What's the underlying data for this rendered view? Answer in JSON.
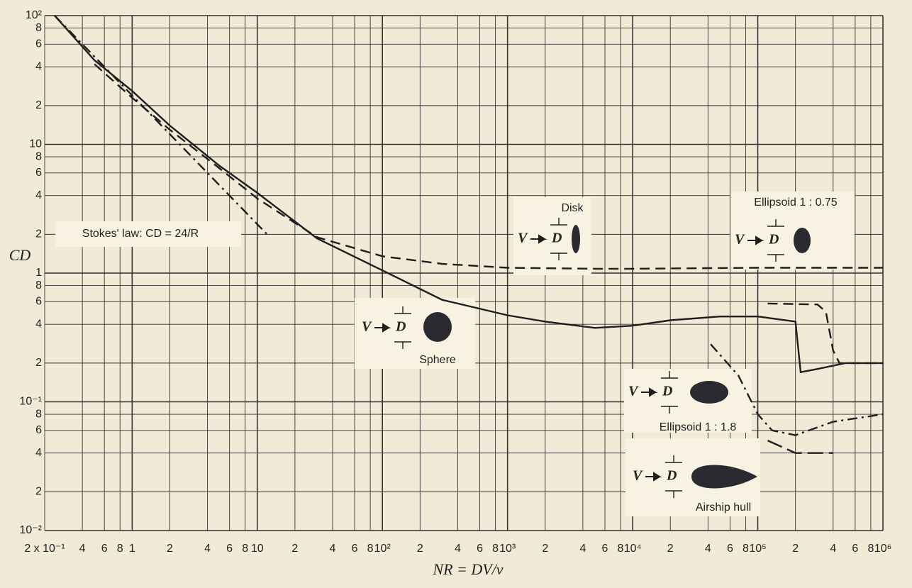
{
  "chart_data": {
    "type": "line",
    "x_label": "NR = DV/ν",
    "y_label": "CD",
    "log_x": true,
    "log_y": true,
    "grid": true,
    "xlim": [
      0.2,
      1000000
    ],
    "ylim": [
      0.01,
      100
    ],
    "xticks": [
      {
        "value": 0.2,
        "label": "2 x 10⁻¹"
      },
      {
        "value": 0.4,
        "label": "4"
      },
      {
        "value": 0.6,
        "label": "6"
      },
      {
        "value": 0.8,
        "label": "8"
      },
      1,
      2,
      4,
      6,
      8,
      10,
      {
        "value": 20,
        "label": "2"
      },
      {
        "value": 40,
        "label": "4"
      },
      {
        "value": 60,
        "label": "6"
      },
      {
        "value": 80,
        "label": "8"
      },
      {
        "value": 100,
        "label": "10²"
      },
      {
        "value": 200,
        "label": "2"
      },
      {
        "value": 400,
        "label": "4"
      },
      {
        "value": 600,
        "label": "6"
      },
      {
        "value": 800,
        "label": "8"
      },
      {
        "value": 1000,
        "label": "10³"
      },
      {
        "value": 2000,
        "label": "2"
      },
      {
        "value": 4000,
        "label": "4"
      },
      {
        "value": 6000,
        "label": "6"
      },
      {
        "value": 8000,
        "label": "8"
      },
      {
        "value": 10000,
        "label": "10⁴"
      },
      {
        "value": 20000,
        "label": "2"
      },
      {
        "value": 40000,
        "label": "4"
      },
      {
        "value": 60000,
        "label": "6"
      },
      {
        "value": 80000,
        "label": "8"
      },
      {
        "value": 100000,
        "label": "10⁵"
      },
      {
        "value": 200000,
        "label": "2"
      },
      {
        "value": 400000,
        "label": "4"
      },
      {
        "value": 600000,
        "label": "6"
      },
      {
        "value": 800000,
        "label": "8"
      },
      {
        "value": 1000000,
        "label": "10⁶"
      }
    ],
    "yticks": [
      {
        "value": 0.01,
        "label": "10⁻²"
      },
      {
        "value": 0.02,
        "label": "2"
      },
      {
        "value": 0.04,
        "label": "4"
      },
      {
        "value": 0.06,
        "label": "6"
      },
      {
        "value": 0.08,
        "label": "8"
      },
      {
        "value": 0.1,
        "label": "10⁻¹"
      },
      {
        "value": 0.2,
        "label": "2"
      },
      {
        "value": 0.4,
        "label": "4"
      },
      {
        "value": 0.6,
        "label": "6"
      },
      {
        "value": 0.8,
        "label": "8"
      },
      1,
      2,
      4,
      6,
      8,
      10,
      {
        "value": 20,
        "label": "2"
      },
      {
        "value": 40,
        "label": "4"
      },
      {
        "value": 60,
        "label": "6"
      },
      {
        "value": 80,
        "label": "8"
      },
      {
        "value": 100,
        "label": "10²"
      }
    ],
    "icon_labels": {
      "velocity": "V",
      "diameter": "D"
    },
    "series": [
      {
        "name": "Sphere",
        "color": "#1e1e1e",
        "dash": "solid",
        "x": [
          0.24,
          0.5,
          1,
          2,
          5,
          10,
          30,
          100,
          300,
          1000,
          2000,
          5000,
          10000,
          20000,
          50000,
          100000,
          200000,
          220000,
          300000,
          500000,
          1000000
        ],
        "y": [
          100,
          45,
          26,
          14,
          6.8,
          4.2,
          1.86,
          1.05,
          0.62,
          0.47,
          0.42,
          0.375,
          0.39,
          0.43,
          0.46,
          0.46,
          0.42,
          0.17,
          0.18,
          0.2,
          0.2
        ]
      },
      {
        "name": "Disk",
        "color": "#1e1e1e",
        "dash": "dashed",
        "x": [
          0.5,
          1,
          2,
          5,
          10,
          30,
          100,
          300,
          1000,
          5000,
          10000,
          100000,
          1000000
        ],
        "y": [
          42,
          23,
          13,
          6.5,
          3.8,
          1.9,
          1.35,
          1.18,
          1.1,
          1.08,
          1.08,
          1.1,
          1.1
        ]
      },
      {
        "name": "Stokes' law: CD = 24/R",
        "color": "#1e1e1e",
        "dash": "dashdot",
        "x": [
          0.24,
          12
        ],
        "y": [
          100,
          2
        ]
      },
      {
        "name": "Ellipsoid 1 : 0.75",
        "color": "#1e1e1e",
        "dash": "dashed",
        "x": [
          120000,
          300000,
          350000,
          400000,
          450000,
          1000000
        ],
        "y": [
          0.58,
          0.57,
          0.5,
          0.25,
          0.2,
          0.2
        ]
      },
      {
        "name": "Ellipsoid 1 : 1.8",
        "color": "#1e1e1e",
        "dash": "dashdot",
        "x": [
          42000,
          70000,
          100000,
          130000,
          200000,
          400000,
          1000000
        ],
        "y": [
          0.28,
          0.16,
          0.08,
          0.06,
          0.055,
          0.07,
          0.08
        ]
      },
      {
        "name": "Airship hull",
        "color": "#1e1e1e",
        "dash": "longdash",
        "x": [
          120000,
          200000,
          400000
        ],
        "y": [
          0.05,
          0.04,
          0.04
        ]
      }
    ]
  }
}
